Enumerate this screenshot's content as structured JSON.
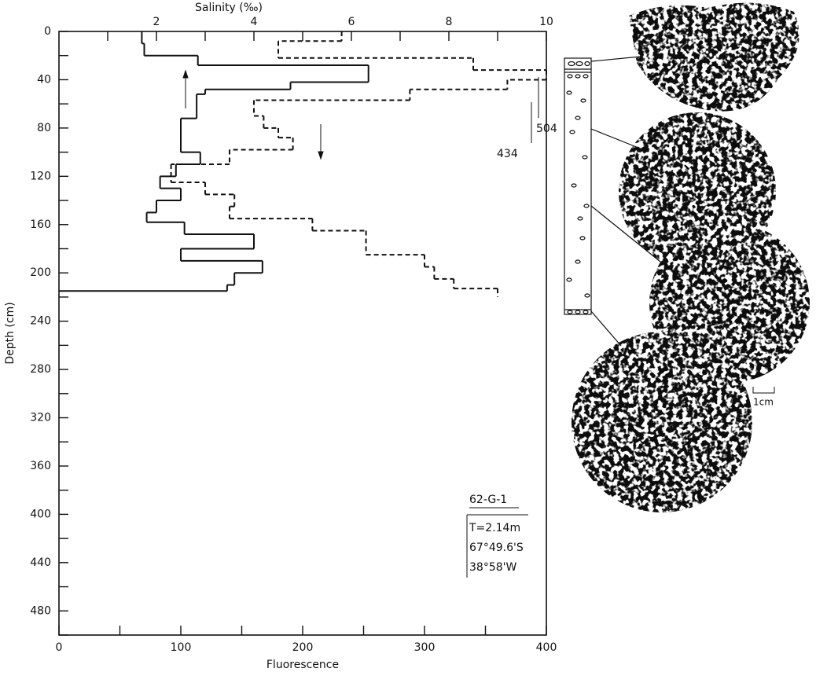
{
  "chart_data": {
    "type": "step-profile",
    "x_label": "Fluorescence",
    "x2_label": "Salinity (‰)",
    "y_label": "Depth (cm)",
    "xlim": [
      0,
      400
    ],
    "xticks": [
      0,
      100,
      200,
      300,
      400
    ],
    "xminorticks": [
      50,
      150,
      250,
      350
    ],
    "x2lim": [
      0,
      10
    ],
    "x2ticks": [
      2,
      4,
      6,
      8,
      10
    ],
    "x2minorticks": [
      1,
      3,
      5,
      7,
      9
    ],
    "ylim": [
      0,
      500
    ],
    "yticks": [
      0,
      40,
      80,
      120,
      160,
      200,
      240,
      280,
      320,
      360,
      400,
      440,
      480
    ],
    "yminorticks": [
      20,
      60,
      100,
      140,
      180,
      220,
      260,
      300,
      340,
      380,
      420,
      460,
      500
    ],
    "y_inverted": true,
    "series": [
      {
        "axis": "x",
        "style": "solid",
        "color": "#111111",
        "depth_edges": [
          0,
          10,
          20,
          28,
          42,
          48,
          52,
          72,
          100,
          110,
          120,
          130,
          140,
          150,
          158,
          168,
          180,
          190,
          200,
          210,
          215
        ],
        "values": [
          68,
          70,
          114,
          254,
          190,
          120,
          113,
          100,
          116,
          96,
          83,
          100,
          80,
          72,
          103,
          160,
          100,
          167,
          144,
          138
        ]
      },
      {
        "axis": "x2",
        "style": "dashed",
        "color": "#111111",
        "depth_edges": [
          0,
          8,
          22,
          32,
          40,
          48,
          57,
          70,
          80,
          88,
          98,
          110,
          125,
          135,
          145,
          155,
          165,
          185,
          195,
          205,
          213,
          220
        ],
        "values": [
          5.8,
          4.5,
          8.5,
          10,
          9.2,
          7.2,
          4.0,
          4.2,
          4.5,
          4.8,
          3.5,
          2.3,
          3.0,
          3.6,
          3.5,
          5.2,
          6.3,
          7.5,
          7.7,
          8.1,
          9.0
        ]
      }
    ],
    "annotations": [
      "504",
      "434"
    ],
    "inset": {
      "core": "62-G-1",
      "length": "T=2.14m",
      "latitude": "67°49.6'S",
      "longitude": "38°58'W"
    },
    "scale_bar": "1cm"
  }
}
